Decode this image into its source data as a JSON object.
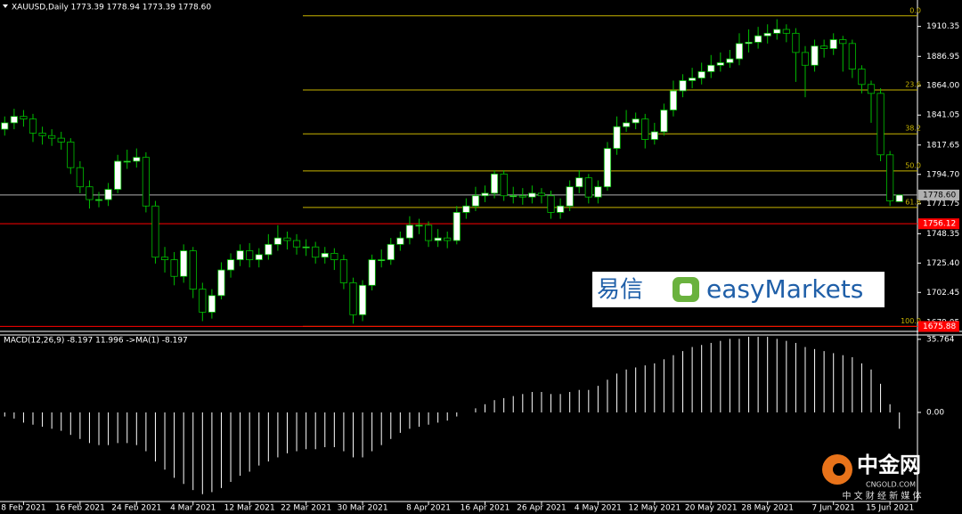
{
  "chart_data": [
    {
      "type": "candlestick",
      "title": "XAUUSD,Daily  1773.39 1778.94 1773.39 1778.60",
      "categories": [
        null,
        null,
        "8 Feb 2021",
        null,
        null,
        null,
        null,
        null,
        "16 Feb 2021",
        null,
        null,
        null,
        null,
        null,
        "24 Feb 2021",
        null,
        null,
        null,
        null,
        null,
        "4 Mar 2021",
        null,
        null,
        null,
        null,
        null,
        "12 Mar 2021",
        null,
        null,
        null,
        null,
        null,
        "22 Mar 2021",
        null,
        null,
        null,
        null,
        null,
        "30 Mar 2021",
        null,
        null,
        null,
        null,
        null,
        null,
        "8 Apr 2021",
        null,
        null,
        null,
        null,
        null,
        "16 Apr 2021",
        null,
        null,
        null,
        null,
        null,
        "26 Apr 2021",
        null,
        null,
        null,
        null,
        null,
        "4 May 2021",
        null,
        null,
        null,
        null,
        null,
        "12 May 2021",
        null,
        null,
        null,
        null,
        null,
        "20 May 2021",
        null,
        null,
        null,
        null,
        null,
        "28 May 2021",
        null,
        null,
        null,
        null,
        null,
        null,
        "7 Jun 2021",
        null,
        null,
        null,
        null,
        null,
        "15 Jun 2021",
        null
      ],
      "open": [
        1830,
        1835,
        1840,
        1838,
        1827,
        1825,
        1823,
        1820,
        1800,
        1785,
        1775,
        1775,
        1783,
        1805,
        1805,
        1808,
        1770,
        1730,
        1728,
        1715,
        1735,
        1705,
        1687,
        1700,
        1720,
        1728,
        1735,
        1728,
        1732,
        1740,
        1745,
        1743,
        1738,
        1738,
        1730,
        1733,
        1728,
        1710,
        1685,
        1708,
        1728,
        1728,
        1740,
        1745,
        1755,
        1755,
        1743,
        1745,
        1743,
        1765,
        1770,
        1778,
        1780,
        1795,
        1778,
        1778,
        1777,
        1780,
        1778,
        1765,
        1770,
        1785,
        1792,
        1777,
        1785,
        1815,
        1832,
        1835,
        1838,
        1822,
        1828,
        1845,
        1860,
        1868,
        1870,
        1875,
        1880,
        1882,
        1885,
        1897,
        1898,
        1903,
        1905,
        1908,
        1905,
        1890,
        1880,
        1895,
        1893,
        1900,
        1897,
        1877,
        1865,
        1858,
        1810,
        1773.39
      ],
      "high": [
        1840,
        1846,
        1845,
        1842,
        1832,
        1830,
        1828,
        1823,
        1805,
        1790,
        1781,
        1788,
        1810,
        1814,
        1815,
        1812,
        1774,
        1738,
        1734,
        1740,
        1738,
        1710,
        1705,
        1726,
        1733,
        1740,
        1741,
        1737,
        1748,
        1755,
        1750,
        1748,
        1744,
        1742,
        1738,
        1737,
        1732,
        1714,
        1712,
        1732,
        1736,
        1745,
        1750,
        1762,
        1760,
        1758,
        1752,
        1750,
        1770,
        1776,
        1785,
        1786,
        1798,
        1798,
        1785,
        1784,
        1786,
        1784,
        1782,
        1776,
        1790,
        1798,
        1795,
        1790,
        1820,
        1840,
        1845,
        1843,
        1842,
        1835,
        1850,
        1868,
        1873,
        1878,
        1882,
        1888,
        1890,
        1892,
        1905,
        1908,
        1910,
        1912,
        1916,
        1912,
        1909,
        1895,
        1900,
        1900,
        1905,
        1903,
        1900,
        1880,
        1868,
        1862,
        1813,
        1778.94
      ],
      "low": [
        1825,
        1830,
        1832,
        1820,
        1818,
        1817,
        1814,
        1795,
        1780,
        1768,
        1769,
        1770,
        1780,
        1799,
        1800,
        1765,
        1725,
        1718,
        1708,
        1710,
        1698,
        1680,
        1682,
        1697,
        1714,
        1723,
        1722,
        1722,
        1728,
        1735,
        1736,
        1732,
        1731,
        1725,
        1725,
        1720,
        1705,
        1678,
        1680,
        1704,
        1722,
        1724,
        1735,
        1740,
        1748,
        1738,
        1738,
        1737,
        1740,
        1760,
        1766,
        1773,
        1776,
        1774,
        1772,
        1771,
        1772,
        1772,
        1760,
        1760,
        1766,
        1780,
        1772,
        1772,
        1782,
        1810,
        1828,
        1830,
        1815,
        1818,
        1825,
        1840,
        1855,
        1862,
        1865,
        1870,
        1875,
        1878,
        1880,
        1890,
        1893,
        1897,
        1900,
        1898,
        1867,
        1855,
        1875,
        1886,
        1888,
        1875,
        1870,
        1858,
        1835,
        1805,
        1770,
        1773.39
      ],
      "close": [
        1835,
        1840,
        1838,
        1827,
        1825,
        1823,
        1820,
        1800,
        1785,
        1775,
        1775,
        1783,
        1805,
        1805,
        1808,
        1770,
        1730,
        1728,
        1715,
        1735,
        1705,
        1687,
        1700,
        1720,
        1728,
        1735,
        1728,
        1732,
        1740,
        1745,
        1743,
        1738,
        1738,
        1730,
        1733,
        1728,
        1710,
        1685,
        1708,
        1728,
        1728,
        1740,
        1745,
        1755,
        1755,
        1743,
        1745,
        1743,
        1765,
        1770,
        1778,
        1780,
        1795,
        1778,
        1778,
        1777,
        1780,
        1778,
        1765,
        1770,
        1785,
        1792,
        1777,
        1785,
        1815,
        1832,
        1835,
        1838,
        1822,
        1828,
        1845,
        1860,
        1868,
        1870,
        1875,
        1880,
        1882,
        1885,
        1897,
        1898,
        1903,
        1905,
        1908,
        1905,
        1890,
        1880,
        1895,
        1893,
        1900,
        1897,
        1877,
        1865,
        1858,
        1810,
        1774,
        1778.6
      ],
      "ylim": [
        1672,
        1931
      ],
      "yticks": [
        1679.05,
        1702.45,
        {
          "value": 1725.4,
          "label": "1725.40"
        },
        1748.35,
        1771.75,
        {
          "value": 1794.7,
          "label": "1794.70"
        },
        1817.65,
        1841.05,
        {
          "value": 1864,
          "label": "1864.00"
        },
        1886.95,
        1910.35
      ],
      "fib_levels": [
        {
          "value": 1918.6,
          "label": "0.0"
        },
        {
          "value": 1860.7,
          "label": "23.6"
        },
        {
          "value": 1826.4,
          "label": "38.2"
        },
        {
          "value": 1797.4,
          "label": "50.0"
        },
        {
          "value": 1768.9,
          "label": "61.8"
        },
        {
          "value": 1675.9,
          "label": "100.0"
        }
      ],
      "fib_color": "#c8b400",
      "price_lines": [
        {
          "value": 1778.6,
          "label": "1778.60",
          "color": "#b0b0b0"
        },
        {
          "value": 1756.12,
          "label": "1756.12",
          "color": "#ff0000"
        },
        {
          "value": 1675.88,
          "label": "1675.88",
          "color": "#ff0000"
        }
      ],
      "up_color": "#ffffff",
      "down_color": "#000000",
      "wick_color": "#00c000"
    },
    {
      "type": "bar",
      "title": "MACD(12,26,9) -8.197 11.996  ->MA(1) -8.197",
      "values": [
        -2,
        -3,
        -5,
        -6,
        -7,
        -8,
        -9,
        -11,
        -13,
        -15,
        -16,
        -16,
        -15,
        -15,
        -16,
        -19,
        -24,
        -28,
        -32,
        -35,
        -38,
        -40,
        -39,
        -37,
        -34,
        -31,
        -29,
        -26,
        -24,
        -22,
        -20,
        -19,
        -18,
        -18,
        -17,
        -17,
        -19,
        -22,
        -22,
        -19,
        -16,
        -13,
        -10,
        -8,
        -7,
        -6,
        -5,
        -4,
        -2,
        0,
        2,
        4,
        6,
        7,
        8,
        9,
        10,
        10,
        9,
        9,
        10,
        11,
        11,
        13,
        16,
        19,
        21,
        22,
        23,
        24,
        26,
        28,
        30,
        32,
        33,
        34,
        35,
        36,
        36,
        37,
        37,
        37,
        36,
        35,
        34,
        32,
        31,
        30,
        29,
        28,
        27,
        24,
        21,
        14,
        4,
        -8
      ],
      "ylim": [
        -43.6,
        37.9
      ],
      "yticks": [
        35.764,
        {
          "value": 0,
          "label": "0.00"
        }
      ],
      "color": "#ffffff"
    }
  ],
  "logo": {
    "cn": "易信",
    "en": "easyMarkets"
  },
  "watermark": {
    "name": "中金网",
    "site": "CNGOLD.COM",
    "slogan": "中 文 财 经 新 媒 体"
  }
}
